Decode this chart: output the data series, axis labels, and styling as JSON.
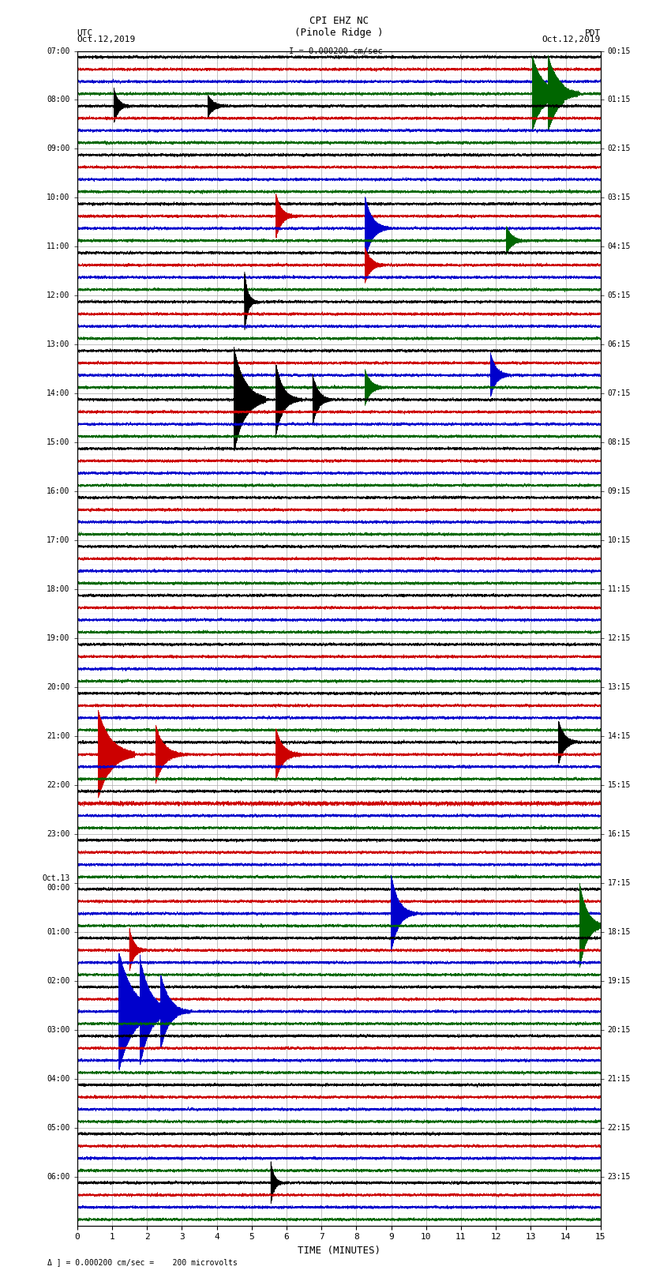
{
  "title_line1": "CPI EHZ NC",
  "title_line2": "(Pinole Ridge )",
  "scale_text": "I = 0.000200 cm/sec",
  "utc_label": "UTC",
  "utc_date": "Oct.12,2019",
  "pdt_label": "PDT",
  "pdt_date": "Oct.12,2019",
  "xlabel": "TIME (MINUTES)",
  "footer_text": "Δ ] = 0.000200 cm/sec =    200 microvolts",
  "left_times_utc": [
    "07:00",
    "08:00",
    "09:00",
    "10:00",
    "11:00",
    "12:00",
    "13:00",
    "14:00",
    "15:00",
    "16:00",
    "17:00",
    "18:00",
    "19:00",
    "20:00",
    "21:00",
    "22:00",
    "23:00",
    "Oct.13\n00:00",
    "01:00",
    "02:00",
    "03:00",
    "04:00",
    "05:00",
    "06:00"
  ],
  "right_times_pdt": [
    "00:15",
    "01:15",
    "02:15",
    "03:15",
    "04:15",
    "05:15",
    "06:15",
    "07:15",
    "08:15",
    "09:15",
    "10:15",
    "11:15",
    "12:15",
    "13:15",
    "14:15",
    "15:15",
    "16:15",
    "17:15",
    "18:15",
    "19:15",
    "20:15",
    "21:15",
    "22:15",
    "23:15"
  ],
  "num_rows": 24,
  "traces_per_row": 4,
  "minutes": 15,
  "sample_rate": 50,
  "background_color": "#ffffff",
  "trace_colors": [
    "#000000",
    "#cc0000",
    "#0000cc",
    "#006600"
  ],
  "grid_color": "#aaaaaa",
  "noise_amplitude": 0.025,
  "event_amplitude": 0.35,
  "linewidth": 0.35
}
